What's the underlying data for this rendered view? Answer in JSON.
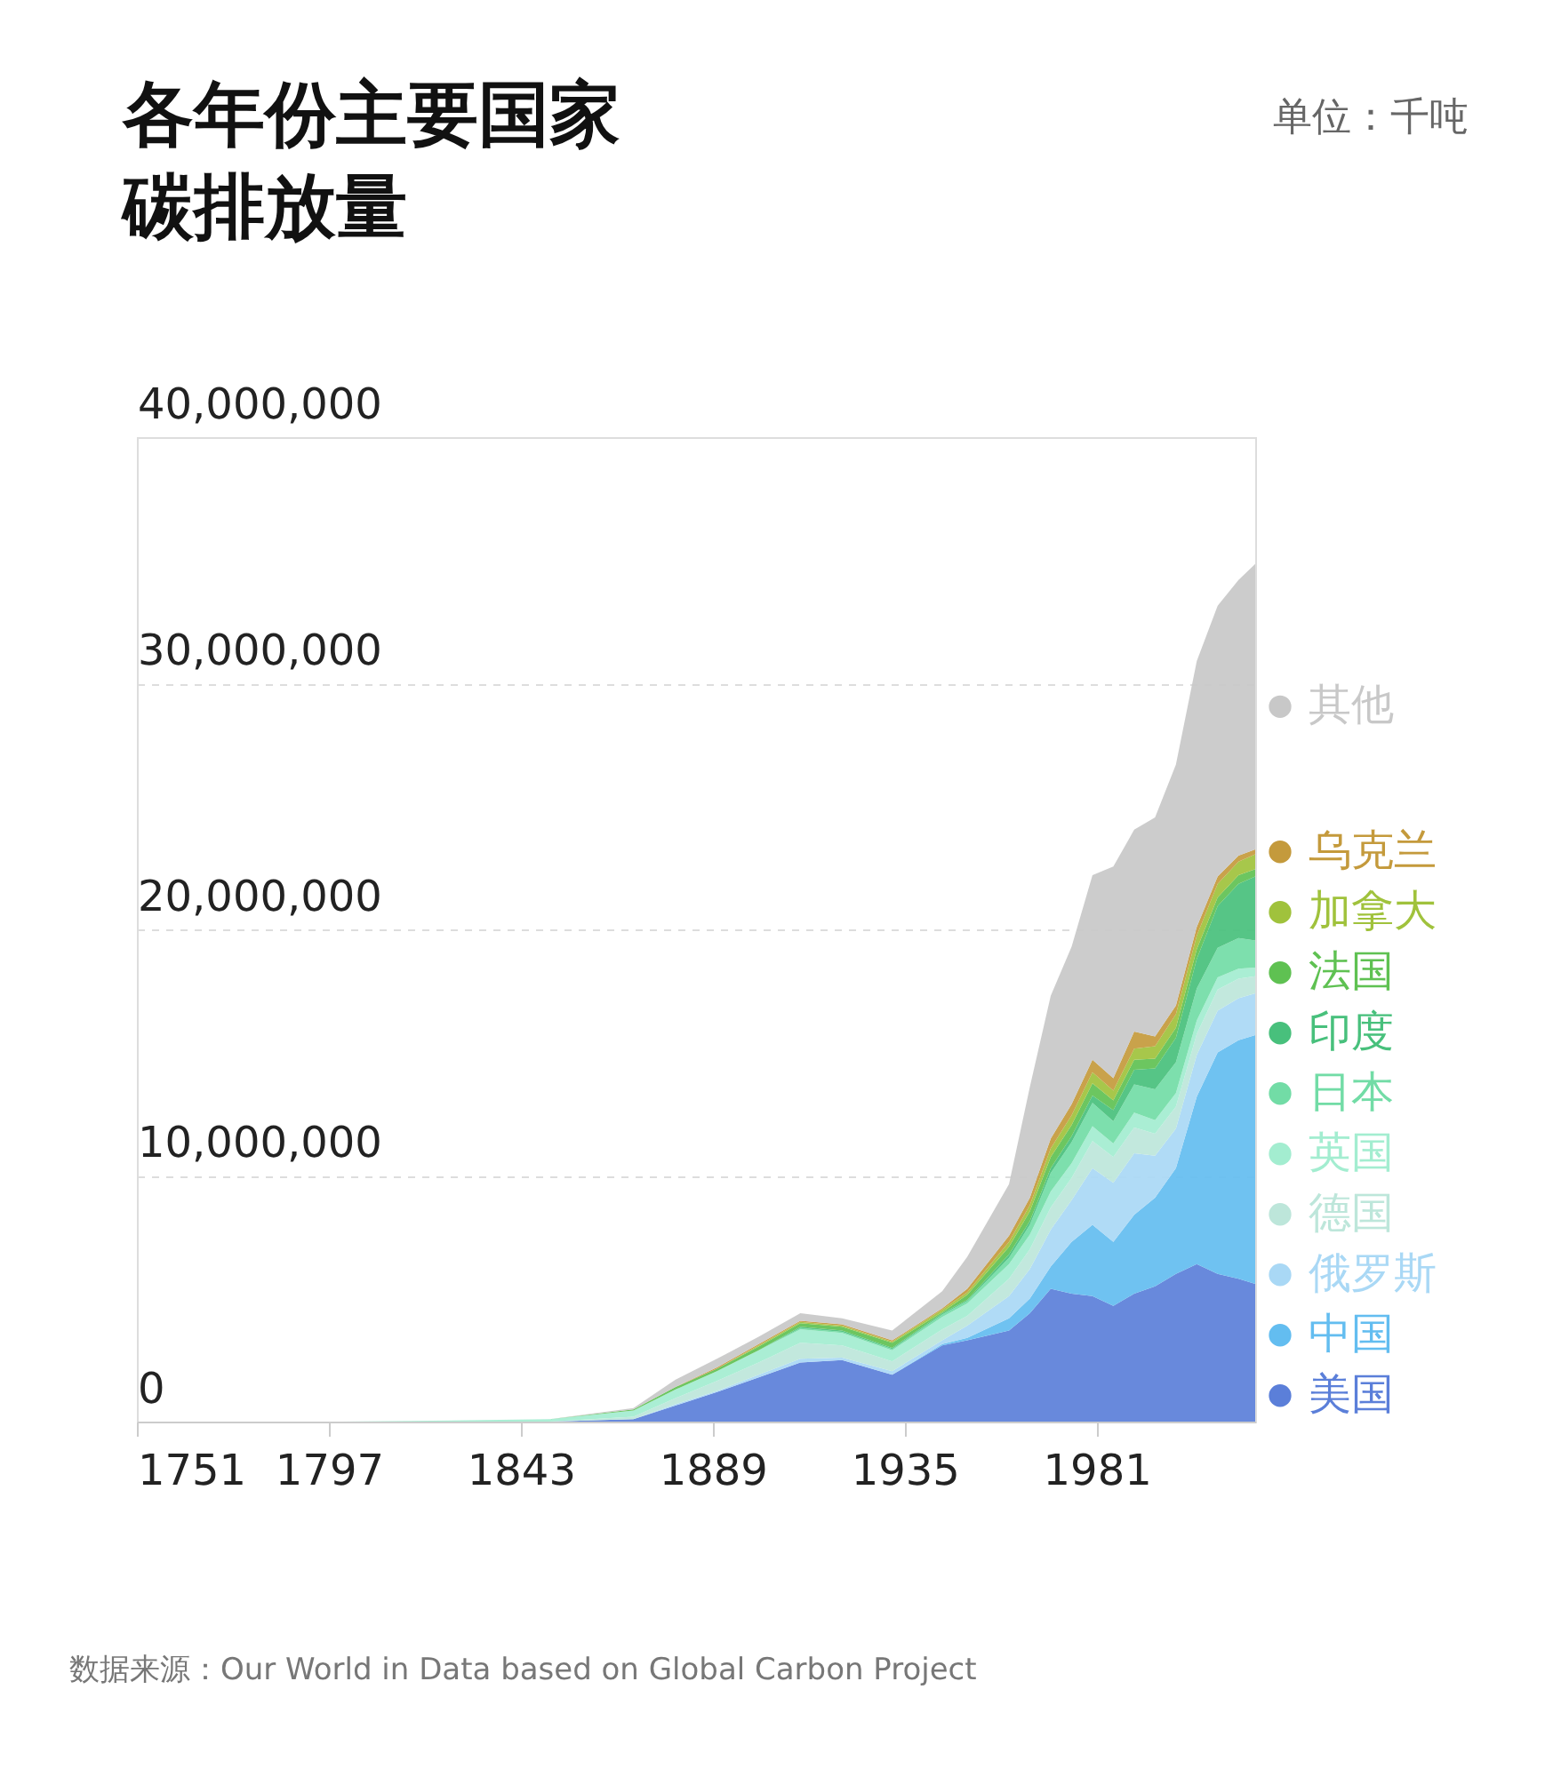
{
  "chart_data": {
    "type": "area",
    "stacked": true,
    "title": "各年份主要国家碳排放量",
    "annotations": [
      "单位：千吨",
      "数据来源：Our World in Data based on Global Carbon Project"
    ],
    "x": [
      1751,
      1800,
      1830,
      1850,
      1870,
      1880,
      1890,
      1900,
      1910,
      1920,
      1932,
      1944,
      1950,
      1960,
      1965,
      1970,
      1975,
      1980,
      1985,
      1990,
      1995,
      2000,
      2005,
      2010,
      2015,
      2019
    ],
    "series": [
      {
        "name": "美国",
        "color": "#5b7fd9",
        "values": [
          0,
          0,
          0,
          0,
          100000,
          650000,
          1200000,
          1800000,
          2400000,
          2500000,
          1900000,
          3100000,
          3300000,
          3700000,
          4400000,
          5400000,
          5200000,
          5100000,
          4700000,
          5200000,
          5500000,
          6000000,
          6400000,
          6000000,
          5800000,
          5600000
        ]
      },
      {
        "name": "中国",
        "color": "#63bdf0",
        "values": [
          0,
          0,
          0,
          0,
          0,
          0,
          0,
          0,
          0,
          0,
          0,
          50000,
          100000,
          500000,
          600000,
          900000,
          2100000,
          2900000,
          2600000,
          3200000,
          3600000,
          4300000,
          6800000,
          9000000,
          9700000,
          10100000
        ]
      },
      {
        "name": "俄罗斯",
        "color": "#a9d8f5",
        "values": [
          0,
          0,
          0,
          0,
          0,
          50000,
          50000,
          100000,
          150000,
          100000,
          150000,
          150000,
          500000,
          900000,
          1200000,
          1500000,
          1700000,
          2300000,
          2400000,
          2500000,
          1700000,
          1600000,
          1700000,
          1700000,
          1700000,
          1700000
        ]
      },
      {
        "name": "德国",
        "color": "#bde6da",
        "values": [
          0,
          0,
          0,
          0,
          100000,
          250000,
          400000,
          500000,
          650000,
          500000,
          400000,
          450000,
          400000,
          700000,
          800000,
          900000,
          900000,
          1100000,
          1050000,
          1050000,
          900000,
          900000,
          850000,
          850000,
          800000,
          700000
        ]
      },
      {
        "name": "英国",
        "color": "#a3edd0",
        "values": [
          0,
          0,
          50000,
          100000,
          250000,
          350000,
          400000,
          500000,
          550000,
          500000,
          450000,
          500000,
          500000,
          600000,
          600000,
          650000,
          600000,
          600000,
          550000,
          600000,
          550000,
          550000,
          550000,
          500000,
          400000,
          350000
        ]
      },
      {
        "name": "日本",
        "color": "#72dca6",
        "values": [
          0,
          0,
          0,
          0,
          0,
          0,
          0,
          0,
          50000,
          50000,
          50000,
          100000,
          100000,
          250000,
          400000,
          750000,
          850000,
          950000,
          900000,
          1150000,
          1250000,
          1250000,
          1300000,
          1200000,
          1250000,
          1100000
        ]
      },
      {
        "name": "印度",
        "color": "#48c07c",
        "values": [
          0,
          0,
          0,
          0,
          0,
          0,
          0,
          0,
          50000,
          50000,
          50000,
          50000,
          50000,
          150000,
          150000,
          200000,
          250000,
          300000,
          450000,
          600000,
          850000,
          1000000,
          1200000,
          1700000,
          2200000,
          2600000
        ]
      },
      {
        "name": "法国",
        "color": "#5fc152",
        "values": [
          0,
          0,
          0,
          0,
          50000,
          100000,
          100000,
          150000,
          150000,
          150000,
          200000,
          50000,
          200000,
          300000,
          400000,
          450000,
          450000,
          500000,
          400000,
          400000,
          400000,
          400000,
          400000,
          350000,
          350000,
          300000
        ]
      },
      {
        "name": "加拿大",
        "color": "#a0c23c",
        "values": [
          0,
          0,
          0,
          0,
          0,
          0,
          0,
          50000,
          50000,
          50000,
          50000,
          100000,
          100000,
          200000,
          250000,
          350000,
          400000,
          450000,
          400000,
          450000,
          500000,
          550000,
          550000,
          550000,
          550000,
          600000
        ]
      },
      {
        "name": "乌克兰",
        "color": "#c49a3c",
        "values": [
          0,
          0,
          0,
          0,
          0,
          0,
          50000,
          50000,
          50000,
          50000,
          50000,
          50000,
          150000,
          250000,
          300000,
          400000,
          450000,
          500000,
          500000,
          700000,
          400000,
          350000,
          350000,
          300000,
          250000,
          200000
        ]
      },
      {
        "name": "其他",
        "color": "#c8c8c8",
        "values": [
          0,
          0,
          0,
          0,
          50000,
          300000,
          350000,
          300000,
          300000,
          250000,
          400000,
          700000,
          1300000,
          2100000,
          4500000,
          5800000,
          6400000,
          7500000,
          8600000,
          8200000,
          8900000,
          9800000,
          10800000,
          11000000,
          11200000,
          11600000
        ]
      }
    ],
    "xlim": [
      1751,
      2019
    ],
    "xticks": [
      1751,
      1797,
      1843,
      1889,
      1935,
      1981
    ],
    "ylim": [
      0,
      40000000
    ],
    "yticks": [
      0,
      {
        "value": 10000000,
        "label": "10,000,000"
      },
      {
        "value": 20000000,
        "label": "20,000,000"
      },
      {
        "value": 30000000,
        "label": "30,000,000"
      },
      {
        "value": 40000000,
        "label": "40,000,000"
      }
    ],
    "grid": "y",
    "legend": "right"
  }
}
